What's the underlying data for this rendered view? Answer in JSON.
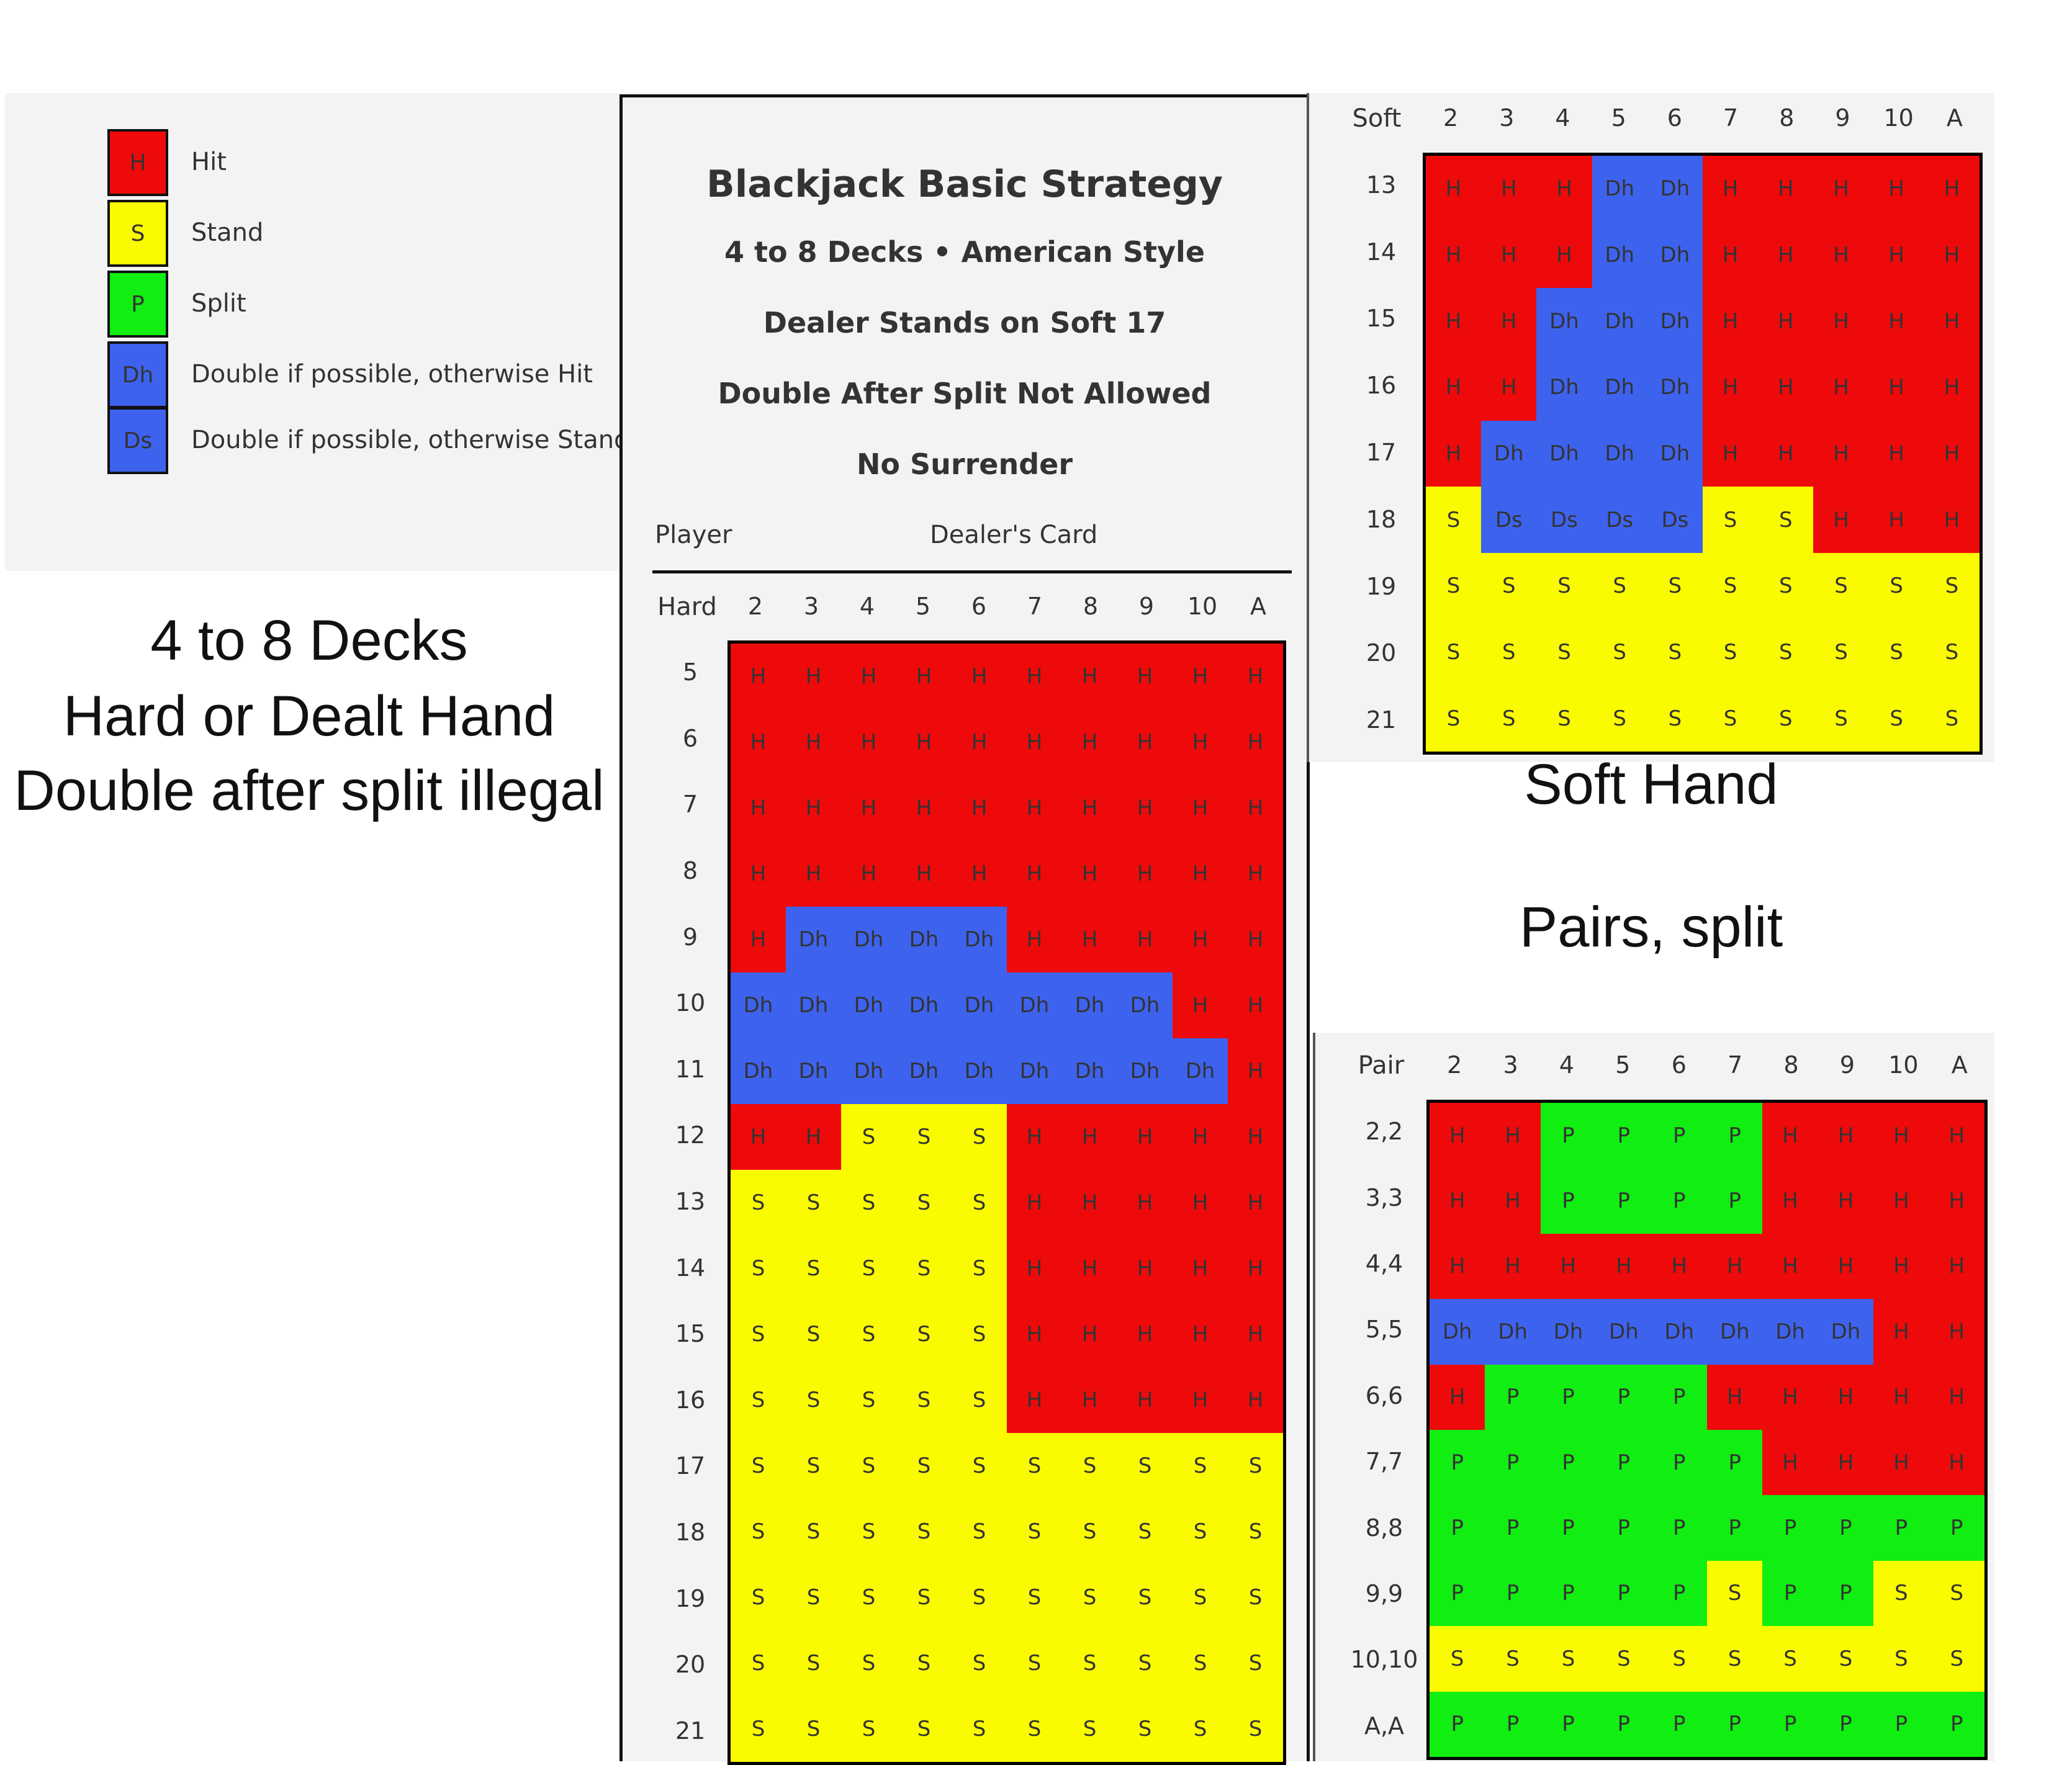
{
  "colors": {
    "H": "#ee0a0a",
    "S": "#fbfb00",
    "P": "#11ee11",
    "Dh": "#3d63ee",
    "Ds": "#3d63ee"
  },
  "legend": [
    {
      "code": "H",
      "label": "Hit"
    },
    {
      "code": "S",
      "label": "Stand"
    },
    {
      "code": "P",
      "label": "Split"
    },
    {
      "code": "Dh",
      "label": "Double if possible, otherwise Hit"
    },
    {
      "code": "Ds",
      "label": "Double if possible, otherwise Stand"
    }
  ],
  "left_caption": {
    "line1": "4 to 8 Decks",
    "line2": "Hard or Dealt Hand",
    "line3": "Double after split illegal"
  },
  "header": {
    "title": "Blackjack Basic Strategy",
    "subtitle": "4 to 8 Decks • American Style",
    "rule1": "Dealer Stands on Soft 17",
    "rule2": "Double After Split Not Allowed",
    "rule3": "No Surrender",
    "player_label": "Player",
    "dealer_label": "Dealer's Card"
  },
  "dealer_cards": [
    "2",
    "3",
    "4",
    "5",
    "6",
    "7",
    "8",
    "9",
    "10",
    "A"
  ],
  "hard_table": {
    "corner": "Hard",
    "rows": [
      "5",
      "6",
      "7",
      "8",
      "9",
      "10",
      "11",
      "12",
      "13",
      "14",
      "15",
      "16",
      "17",
      "18",
      "19",
      "20",
      "21"
    ],
    "cells": [
      [
        "H",
        "H",
        "H",
        "H",
        "H",
        "H",
        "H",
        "H",
        "H",
        "H"
      ],
      [
        "H",
        "H",
        "H",
        "H",
        "H",
        "H",
        "H",
        "H",
        "H",
        "H"
      ],
      [
        "H",
        "H",
        "H",
        "H",
        "H",
        "H",
        "H",
        "H",
        "H",
        "H"
      ],
      [
        "H",
        "H",
        "H",
        "H",
        "H",
        "H",
        "H",
        "H",
        "H",
        "H"
      ],
      [
        "H",
        "Dh",
        "Dh",
        "Dh",
        "Dh",
        "H",
        "H",
        "H",
        "H",
        "H"
      ],
      [
        "Dh",
        "Dh",
        "Dh",
        "Dh",
        "Dh",
        "Dh",
        "Dh",
        "Dh",
        "H",
        "H"
      ],
      [
        "Dh",
        "Dh",
        "Dh",
        "Dh",
        "Dh",
        "Dh",
        "Dh",
        "Dh",
        "Dh",
        "H"
      ],
      [
        "H",
        "H",
        "S",
        "S",
        "S",
        "H",
        "H",
        "H",
        "H",
        "H"
      ],
      [
        "S",
        "S",
        "S",
        "S",
        "S",
        "H",
        "H",
        "H",
        "H",
        "H"
      ],
      [
        "S",
        "S",
        "S",
        "S",
        "S",
        "H",
        "H",
        "H",
        "H",
        "H"
      ],
      [
        "S",
        "S",
        "S",
        "S",
        "S",
        "H",
        "H",
        "H",
        "H",
        "H"
      ],
      [
        "S",
        "S",
        "S",
        "S",
        "S",
        "H",
        "H",
        "H",
        "H",
        "H"
      ],
      [
        "S",
        "S",
        "S",
        "S",
        "S",
        "S",
        "S",
        "S",
        "S",
        "S"
      ],
      [
        "S",
        "S",
        "S",
        "S",
        "S",
        "S",
        "S",
        "S",
        "S",
        "S"
      ],
      [
        "S",
        "S",
        "S",
        "S",
        "S",
        "S",
        "S",
        "S",
        "S",
        "S"
      ],
      [
        "S",
        "S",
        "S",
        "S",
        "S",
        "S",
        "S",
        "S",
        "S",
        "S"
      ],
      [
        "S",
        "S",
        "S",
        "S",
        "S",
        "S",
        "S",
        "S",
        "S",
        "S"
      ]
    ]
  },
  "soft_table": {
    "corner": "Soft",
    "caption": "Soft Hand",
    "rows": [
      "13",
      "14",
      "15",
      "16",
      "17",
      "18",
      "19",
      "20",
      "21"
    ],
    "cells": [
      [
        "H",
        "H",
        "H",
        "Dh",
        "Dh",
        "H",
        "H",
        "H",
        "H",
        "H"
      ],
      [
        "H",
        "H",
        "H",
        "Dh",
        "Dh",
        "H",
        "H",
        "H",
        "H",
        "H"
      ],
      [
        "H",
        "H",
        "Dh",
        "Dh",
        "Dh",
        "H",
        "H",
        "H",
        "H",
        "H"
      ],
      [
        "H",
        "H",
        "Dh",
        "Dh",
        "Dh",
        "H",
        "H",
        "H",
        "H",
        "H"
      ],
      [
        "H",
        "Dh",
        "Dh",
        "Dh",
        "Dh",
        "H",
        "H",
        "H",
        "H",
        "H"
      ],
      [
        "S",
        "Ds",
        "Ds",
        "Ds",
        "Ds",
        "S",
        "S",
        "H",
        "H",
        "H"
      ],
      [
        "S",
        "S",
        "S",
        "S",
        "S",
        "S",
        "S",
        "S",
        "S",
        "S"
      ],
      [
        "S",
        "S",
        "S",
        "S",
        "S",
        "S",
        "S",
        "S",
        "S",
        "S"
      ],
      [
        "S",
        "S",
        "S",
        "S",
        "S",
        "S",
        "S",
        "S",
        "S",
        "S"
      ]
    ]
  },
  "pair_table": {
    "corner": "Pair",
    "caption": "Pairs, split",
    "rows": [
      "2,2",
      "3,3",
      "4,4",
      "5,5",
      "6,6",
      "7,7",
      "8,8",
      "9,9",
      "10,10",
      "A,A"
    ],
    "cells": [
      [
        "H",
        "H",
        "P",
        "P",
        "P",
        "P",
        "H",
        "H",
        "H",
        "H"
      ],
      [
        "H",
        "H",
        "P",
        "P",
        "P",
        "P",
        "H",
        "H",
        "H",
        "H"
      ],
      [
        "H",
        "H",
        "H",
        "H",
        "H",
        "H",
        "H",
        "H",
        "H",
        "H"
      ],
      [
        "Dh",
        "Dh",
        "Dh",
        "Dh",
        "Dh",
        "Dh",
        "Dh",
        "Dh",
        "H",
        "H"
      ],
      [
        "H",
        "P",
        "P",
        "P",
        "P",
        "H",
        "H",
        "H",
        "H",
        "H"
      ],
      [
        "P",
        "P",
        "P",
        "P",
        "P",
        "P",
        "H",
        "H",
        "H",
        "H"
      ],
      [
        "P",
        "P",
        "P",
        "P",
        "P",
        "P",
        "P",
        "P",
        "P",
        "P"
      ],
      [
        "P",
        "P",
        "P",
        "P",
        "P",
        "S",
        "P",
        "P",
        "S",
        "S"
      ],
      [
        "S",
        "S",
        "S",
        "S",
        "S",
        "S",
        "S",
        "S",
        "S",
        "S"
      ],
      [
        "P",
        "P",
        "P",
        "P",
        "P",
        "P",
        "P",
        "P",
        "P",
        "P"
      ]
    ]
  }
}
